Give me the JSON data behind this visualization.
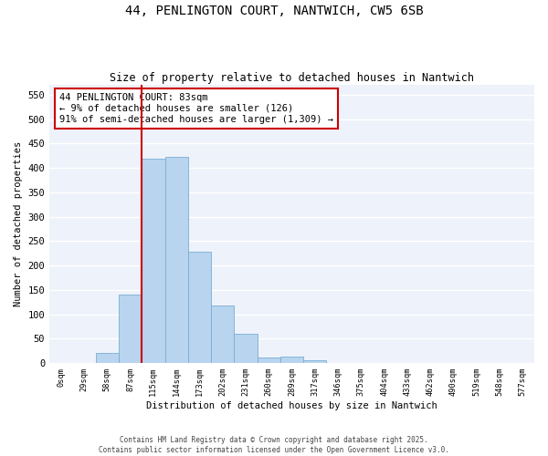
{
  "title_line1": "44, PENLINGTON COURT, NANTWICH, CW5 6SB",
  "title_line2": "Size of property relative to detached houses in Nantwich",
  "xlabel": "Distribution of detached houses by size in Nantwich",
  "ylabel": "Number of detached properties",
  "bar_color": "#b8d4ee",
  "bar_edge_color": "#7aaed4",
  "vline_color": "#cc0000",
  "annotation_box_color": "#cc0000",
  "background_color": "#eef2fa",
  "grid_color": "#ffffff",
  "categories": [
    "0sqm",
    "29sqm",
    "58sqm",
    "87sqm",
    "115sqm",
    "144sqm",
    "173sqm",
    "202sqm",
    "231sqm",
    "260sqm",
    "289sqm",
    "317sqm",
    "346sqm",
    "375sqm",
    "404sqm",
    "433sqm",
    "462sqm",
    "490sqm",
    "519sqm",
    "548sqm",
    "577sqm"
  ],
  "values": [
    0,
    0,
    20,
    140,
    418,
    422,
    228,
    118,
    60,
    12,
    13,
    5,
    1,
    0,
    0,
    0,
    1,
    0,
    0,
    0,
    0
  ],
  "vline_x": 3.5,
  "annotation_text": "44 PENLINGTON COURT: 83sqm\n← 9% of detached houses are smaller (126)\n91% of semi-detached houses are larger (1,309) →",
  "ylim": [
    0,
    570
  ],
  "yticks": [
    0,
    50,
    100,
    150,
    200,
    250,
    300,
    350,
    400,
    450,
    500,
    550
  ],
  "footer_line1": "Contains HM Land Registry data © Crown copyright and database right 2025.",
  "footer_line2": "Contains public sector information licensed under the Open Government Licence v3.0."
}
